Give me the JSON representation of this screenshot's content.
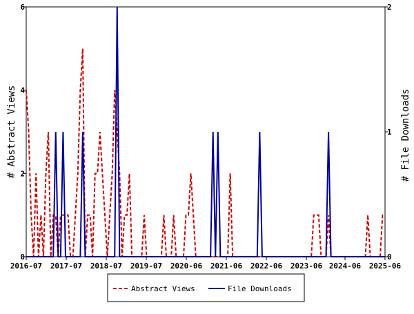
{
  "chart_data": {
    "type": "line",
    "title": "",
    "xlabel": "",
    "x_tick_labels": [
      "2016-07",
      "2017-07",
      "2018-07",
      "2019-07",
      "2020-06",
      "2021-06",
      "2022-06",
      "2023-06",
      "2024-06",
      "2025-06"
    ],
    "x_range": [
      0,
      109
    ],
    "left_axis": {
      "label": "# Abstract Views",
      "ylim": [
        0,
        6
      ],
      "ticks": [
        "0",
        "2",
        "4",
        "6"
      ]
    },
    "right_axis": {
      "label": "# File Downloads",
      "ylim": [
        0,
        2
      ],
      "ticks": [
        "0",
        "1",
        "2"
      ]
    },
    "grid": false,
    "legend_position": "bottom",
    "series": [
      {
        "name": "Abstract Views",
        "axis": "left",
        "color": "#cc0000",
        "dash": "dashed",
        "values": [
          4,
          3,
          1,
          0,
          2,
          0,
          1,
          0,
          2,
          3,
          0,
          1,
          1,
          0,
          1,
          1,
          1,
          1,
          0,
          0,
          1,
          2,
          4,
          5,
          0,
          1,
          1,
          0,
          2,
          2,
          3,
          2,
          1,
          0,
          1,
          2,
          4,
          3,
          2,
          0,
          1,
          1,
          2,
          0,
          0,
          0,
          0,
          0,
          1,
          0,
          0,
          0,
          0,
          0,
          0,
          0,
          1,
          0,
          0,
          0,
          1,
          0,
          0,
          0,
          0,
          1,
          1,
          2,
          1,
          0,
          0,
          0,
          0,
          0,
          0,
          0,
          0,
          0,
          0,
          0,
          0,
          0,
          0,
          2,
          0,
          0,
          0,
          0,
          0,
          0,
          0,
          0,
          0,
          0,
          0,
          0,
          0,
          0,
          0,
          0,
          0,
          0,
          0,
          0,
          0,
          0,
          0,
          0,
          0,
          0,
          0,
          0,
          0,
          0,
          0,
          0,
          0,
          1,
          1,
          1,
          0,
          0,
          0,
          1,
          0,
          0,
          0,
          0,
          0,
          0,
          0,
          0,
          0,
          0,
          0,
          0,
          0,
          0,
          0,
          1,
          0,
          0,
          0,
          0,
          0,
          1,
          1
        ]
      },
      {
        "name": "File Downloads",
        "axis": "right",
        "color": "#000099",
        "dash": "solid",
        "values": [
          0,
          0,
          0,
          0,
          0,
          0,
          0,
          0,
          0,
          0,
          0,
          0,
          1,
          0,
          0,
          1,
          0,
          0,
          0,
          0,
          0,
          0,
          0,
          1,
          0,
          0,
          0,
          0,
          0,
          0,
          0,
          0,
          0,
          0,
          0,
          0,
          0,
          2,
          0,
          0,
          0,
          0,
          0,
          0,
          0,
          0,
          0,
          0,
          0,
          0,
          0,
          0,
          0,
          0,
          0,
          0,
          0,
          0,
          0,
          0,
          0,
          0,
          0,
          0,
          0,
          0,
          0,
          0,
          0,
          0,
          0,
          0,
          0,
          0,
          0,
          0,
          1,
          0,
          1,
          0,
          0,
          0,
          0,
          0,
          0,
          0,
          0,
          0,
          0,
          0,
          0,
          0,
          0,
          0,
          0,
          1,
          0,
          0,
          0,
          0,
          0,
          0,
          0,
          0,
          0,
          0,
          0,
          0,
          0,
          0,
          0,
          0,
          0,
          0,
          0,
          0,
          0,
          0,
          0,
          0,
          0,
          0,
          0,
          1,
          0,
          0,
          0,
          0,
          0,
          0,
          0,
          0,
          0,
          0,
          0,
          0,
          0,
          0,
          0,
          0,
          0,
          0,
          0,
          0,
          0,
          0,
          0
        ]
      }
    ]
  }
}
